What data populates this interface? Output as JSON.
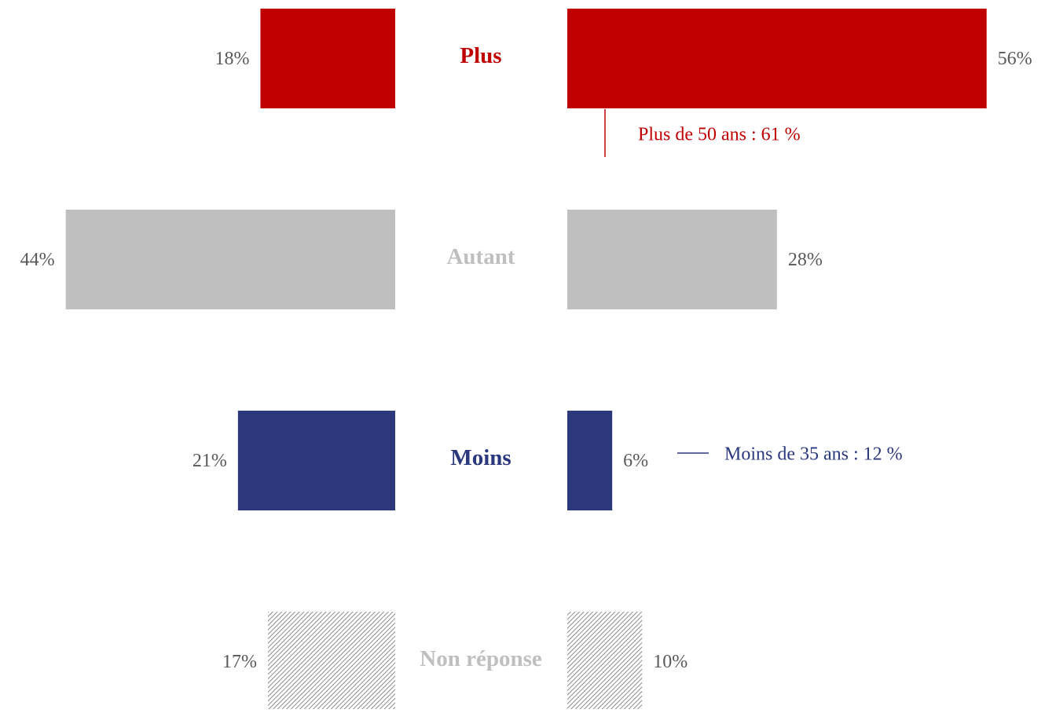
{
  "chart_data": {
    "type": "butterfly",
    "categories": [
      "Plus",
      "Autant",
      "Moins",
      "Non réponse"
    ],
    "colors": [
      "#c00000",
      "#bfbfbf",
      "#2b387c",
      "#7f7f7f"
    ],
    "hatched": [
      false,
      false,
      false,
      true
    ],
    "series": [
      {
        "values": [
          18,
          44,
          21,
          17
        ],
        "value_labels": [
          "18%",
          "44%",
          "21%",
          "17%"
        ]
      },
      {
        "values": [
          56,
          28,
          6,
          10
        ],
        "value_labels": [
          "56%",
          "28%",
          "6%",
          "10%"
        ]
      }
    ],
    "annotations": [
      "Plus de 50 ans : 61 %",
      "Moins de 35 ans : 12 %"
    ]
  }
}
